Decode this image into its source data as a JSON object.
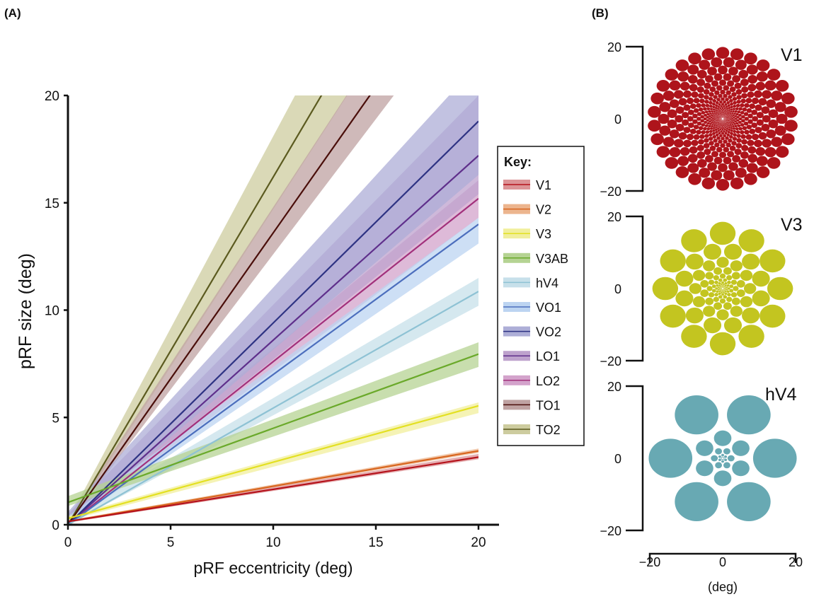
{
  "chart_data": [
    {
      "panel_label": "(A)",
      "type": "line",
      "xlabel": "pRF eccentricity (deg)",
      "ylabel": "pRF size (deg)",
      "xlim": [
        0,
        20
      ],
      "ylim": [
        0,
        20
      ],
      "xticks": [
        "0",
        "5",
        "10",
        "15",
        "20"
      ],
      "yticks": [
        "0",
        "5",
        "10",
        "15",
        "20"
      ],
      "grid": false,
      "legend": {
        "title": "Key:",
        "placement": "right"
      },
      "series": [
        {
          "name": "V1",
          "color": "#b5121b",
          "band": "#dc9396",
          "x": [
            0,
            20
          ],
          "y": [
            0.15,
            3.15
          ],
          "ci_low": [
            0.1,
            3.05
          ],
          "ci_high": [
            0.2,
            3.3
          ]
        },
        {
          "name": "V2",
          "color": "#d8651e",
          "band": "#ecb58e",
          "x": [
            0,
            20
          ],
          "y": [
            0.15,
            3.44
          ],
          "ci_low": [
            0.1,
            3.35
          ],
          "ci_high": [
            0.2,
            3.55
          ]
        },
        {
          "name": "V3",
          "color": "#e3e021",
          "band": "#f1ef9c",
          "x": [
            0,
            20
          ],
          "y": [
            0.29,
            5.54
          ],
          "ci_low": [
            0.2,
            5.2
          ],
          "ci_high": [
            0.4,
            5.7
          ]
        },
        {
          "name": "V3AB",
          "color": "#6aa92a",
          "band": "#b5d393",
          "x": [
            0,
            20
          ],
          "y": [
            1.04,
            7.95
          ],
          "ci_low": [
            0.87,
            7.35
          ],
          "ci_high": [
            1.33,
            8.5
          ]
        },
        {
          "name": "hV4",
          "color": "#8ec2d4",
          "band": "#c7e0ea",
          "x": [
            0,
            20
          ],
          "y": [
            0.0,
            10.87
          ],
          "ci_low": [
            0.0,
            10.2
          ],
          "ci_high": [
            0.3,
            11.5
          ]
        },
        {
          "name": "VO1",
          "color": "#4c6ebd",
          "band": "#bcd4f1",
          "x": [
            0,
            20
          ],
          "y": [
            0.0,
            14.0
          ],
          "ci_low": [
            0.0,
            13.1
          ],
          "ci_high": [
            0.4,
            14.3
          ]
        },
        {
          "name": "VO2",
          "color": "#2e3383",
          "band": "#adaed7",
          "x": [
            0,
            20
          ],
          "y": [
            0.0,
            18.8
          ],
          "ci_low": [
            0.0,
            16.3
          ],
          "ci_high": [
            0.6,
            21.5
          ]
        },
        {
          "name": "LO1",
          "color": "#5f2f8b",
          "band": "#bea2cd",
          "x": [
            0,
            20
          ],
          "y": [
            0.0,
            17.2
          ],
          "ci_low": [
            0.0,
            15.4
          ],
          "ci_high": [
            0.5,
            20.0
          ]
        },
        {
          "name": "LO2",
          "color": "#a2307b",
          "band": "#d3a3cb",
          "x": [
            0,
            20
          ],
          "y": [
            0.0,
            15.2
          ],
          "ci_low": [
            0.0,
            14.3
          ],
          "ci_high": [
            0.4,
            16.05
          ]
        },
        {
          "name": "TO1",
          "color": "#4a0e0a",
          "band": "#bfa2a2",
          "x": [
            0,
            20
          ],
          "y": [
            0.0,
            27.2
          ],
          "ci_low": [
            0.0,
            25.2
          ],
          "ci_high": [
            0.2,
            29.4
          ]
        },
        {
          "name": "TO2",
          "color": "#5b5a1f",
          "band": "#cdcc9f",
          "x": [
            0,
            20
          ],
          "y": [
            0.0,
            32.4
          ],
          "ci_low": [
            0.0,
            29.4
          ],
          "ci_high": [
            0.2,
            36.0
          ]
        }
      ]
    },
    {
      "panel_label": "(B)",
      "type": "scatter",
      "xlabel": "(deg)",
      "xticks": [
        "−20",
        "0",
        "20"
      ],
      "yticks": [
        "20",
        "0",
        "−20"
      ],
      "panels": [
        {
          "name": "V1",
          "color": "#ae141b"
        },
        {
          "name": "V3",
          "color": "#c3c520"
        },
        {
          "name": "hV4",
          "color": "#68a9b3"
        }
      ]
    }
  ]
}
